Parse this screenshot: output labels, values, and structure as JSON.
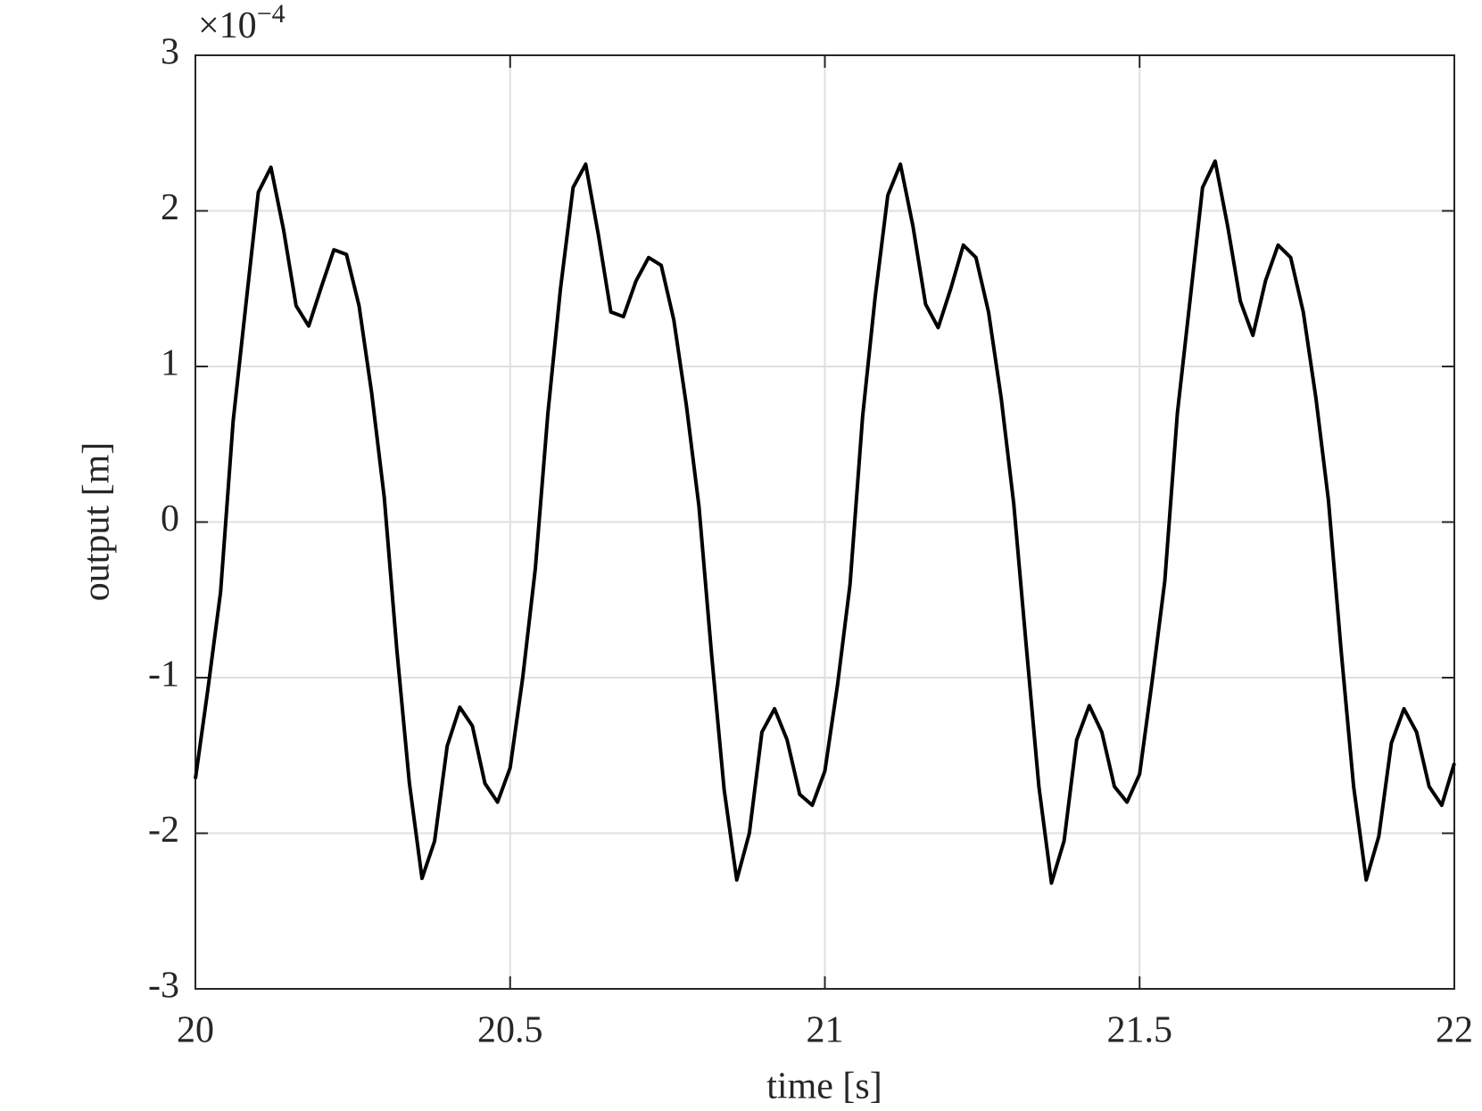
{
  "chart_data": {
    "type": "line",
    "x_label": "time [s]",
    "y_label": "output [m]",
    "multiplier": "×10",
    "multiplier_exponent": "−4",
    "xlim": [
      20,
      22
    ],
    "xticks": [
      20,
      20.5,
      21,
      21.5,
      22
    ],
    "ylim": [
      -3,
      3
    ],
    "yticks": [
      -3,
      -2,
      -1,
      0,
      1,
      2,
      3
    ],
    "grid": true,
    "x": [
      20,
      20.02,
      20.04,
      20.06,
      20.08,
      20.1,
      20.12,
      20.14,
      20.16,
      20.18,
      20.2,
      20.22,
      20.24,
      20.26,
      20.28,
      20.3,
      20.32,
      20.34,
      20.36,
      20.38,
      20.4,
      20.42,
      20.44,
      20.46,
      20.48,
      20.5,
      20.52,
      20.54,
      20.56,
      20.58,
      20.6,
      20.62,
      20.64,
      20.66,
      20.68,
      20.7,
      20.72,
      20.74,
      20.76,
      20.78,
      20.8,
      20.82,
      20.84,
      20.86,
      20.88,
      20.9,
      20.92,
      20.94,
      20.96,
      20.98,
      21,
      21.02,
      21.04,
      21.06,
      21.08,
      21.1,
      21.12,
      21.14,
      21.16,
      21.18,
      21.2,
      21.22,
      21.24,
      21.26,
      21.28,
      21.3,
      21.32,
      21.34,
      21.36,
      21.38,
      21.4,
      21.42,
      21.44,
      21.46,
      21.48,
      21.5,
      21.52,
      21.54,
      21.56,
      21.58,
      21.6,
      21.62,
      21.64,
      21.66,
      21.68,
      21.7,
      21.72,
      21.74,
      21.76,
      21.78,
      21.8,
      21.82,
      21.84,
      21.86,
      21.88,
      21.9,
      21.92,
      21.94,
      21.96,
      21.98,
      22
    ],
    "series": [
      {
        "color": "#000000",
        "values": [
          -1.65,
          -1.07,
          -0.45,
          0.65,
          1.39,
          2.12,
          2.28,
          1.88,
          1.39,
          1.26,
          1.51,
          1.75,
          1.72,
          1.39,
          0.83,
          0.16,
          -0.82,
          -1.68,
          -2.29,
          -2.05,
          -1.44,
          -1.19,
          -1.31,
          -1.68,
          -1.8,
          -1.58,
          -1.0,
          -0.3,
          0.7,
          1.5,
          2.15,
          2.3,
          1.85,
          1.35,
          1.32,
          1.55,
          1.7,
          1.65,
          1.3,
          0.75,
          0.1,
          -0.85,
          -1.72,
          -2.3,
          -2.0,
          -1.35,
          -1.2,
          -1.4,
          -1.75,
          -1.82,
          -1.6,
          -1.05,
          -0.4,
          0.68,
          1.45,
          2.1,
          2.3,
          1.9,
          1.4,
          1.25,
          1.5,
          1.78,
          1.7,
          1.35,
          0.8,
          0.12,
          -0.8,
          -1.7,
          -2.32,
          -2.05,
          -1.4,
          -1.18,
          -1.35,
          -1.7,
          -1.8,
          -1.62,
          -1.02,
          -0.38,
          0.7,
          1.42,
          2.15,
          2.32,
          1.9,
          1.42,
          1.2,
          1.55,
          1.78,
          1.7,
          1.35,
          0.8,
          0.14,
          -0.82,
          -1.7,
          -2.3,
          -2.02,
          -1.42,
          -1.2,
          -1.35,
          -1.7,
          -1.82,
          -1.55
        ]
      }
    ]
  }
}
